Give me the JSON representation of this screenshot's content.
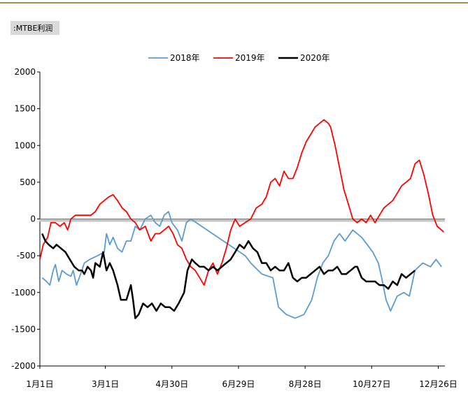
{
  "chart_data": {
    "type": "line",
    "title": ":MTBE利润",
    "xlim": [
      0,
      365
    ],
    "xticks": [
      {
        "value": 0,
        "label": "1月1日"
      },
      {
        "value": 59,
        "label": "3月1日"
      },
      {
        "value": 119,
        "label": "4月30日"
      },
      {
        "value": 179,
        "label": "6月29日"
      },
      {
        "value": 239,
        "label": "8月28日"
      },
      {
        "value": 299,
        "label": "10月27日"
      },
      {
        "value": 359,
        "label": "12月26日"
      }
    ],
    "ylim": [
      -2000,
      2000
    ],
    "yticks": [
      -2000,
      -1500,
      -1000,
      -500,
      0,
      500,
      1000,
      1500,
      2000
    ],
    "legend": "top",
    "series": [
      {
        "name": "2018年",
        "color": "#5b9bd5",
        "x": [
          2,
          6,
          9,
          12,
          14,
          17,
          20,
          24,
          28,
          30,
          33,
          36,
          40,
          45,
          52,
          58,
          60,
          63,
          66,
          70,
          74,
          78,
          82,
          86,
          90,
          95,
          100,
          104,
          108,
          112,
          116,
          119,
          124,
          128,
          132,
          136,
          185,
          190,
          200,
          210,
          215,
          222,
          230,
          238,
          245,
          250,
          255,
          260,
          265,
          270,
          275,
          282,
          290,
          295,
          300,
          305,
          308,
          312,
          316,
          322,
          328,
          333,
          338,
          345,
          352,
          357,
          362
        ],
        "values": [
          -800,
          -850,
          -900,
          -700,
          -620,
          -850,
          -700,
          -750,
          -780,
          -700,
          -900,
          -780,
          -600,
          -550,
          -500,
          -450,
          -200,
          -350,
          -250,
          -400,
          -450,
          -300,
          -300,
          -100,
          -150,
          0,
          50,
          -50,
          -100,
          50,
          100,
          -50,
          -150,
          -300,
          -50,
          0,
          -500,
          -600,
          -750,
          -800,
          -1200,
          -1300,
          -1350,
          -1300,
          -1100,
          -800,
          -600,
          -500,
          -300,
          -200,
          -300,
          -150,
          -250,
          -350,
          -450,
          -600,
          -800,
          -1100,
          -1250,
          -1050,
          -1000,
          -1050,
          -700,
          -600,
          -650,
          -550,
          -650
        ]
      },
      {
        "name": "2019年",
        "color": "#ff0000",
        "x": [
          0,
          3,
          7,
          10,
          14,
          18,
          22,
          25,
          28,
          32,
          40,
          46,
          50,
          54,
          58,
          62,
          66,
          70,
          74,
          78,
          82,
          86,
          90,
          95,
          100,
          104,
          108,
          112,
          116,
          120,
          124,
          128,
          132,
          136,
          140,
          144,
          148,
          152,
          156,
          160,
          164,
          168,
          172,
          176,
          180,
          185,
          190,
          195,
          200,
          204,
          208,
          212,
          216,
          220,
          224,
          228,
          232,
          236,
          240,
          244,
          248,
          252,
          256,
          260,
          262,
          266,
          270,
          274,
          278,
          282,
          286,
          290,
          294,
          298,
          302,
          306,
          310,
          314,
          318,
          322,
          326,
          330,
          334,
          338,
          342,
          346,
          350,
          354,
          358,
          362,
          364
        ],
        "values": [
          -550,
          -350,
          -250,
          -50,
          -50,
          -100,
          -50,
          -150,
          0,
          50,
          50,
          50,
          100,
          200,
          250,
          300,
          330,
          250,
          150,
          100,
          0,
          -50,
          -150,
          -100,
          -300,
          -200,
          -200,
          -150,
          -100,
          -200,
          -350,
          -400,
          -550,
          -650,
          -700,
          -800,
          -900,
          -700,
          -600,
          -750,
          -600,
          -400,
          -150,
          0,
          -100,
          -50,
          0,
          150,
          200,
          300,
          500,
          550,
          450,
          650,
          550,
          550,
          700,
          900,
          1050,
          1150,
          1250,
          1300,
          1350,
          1300,
          1250,
          1000,
          700,
          400,
          200,
          0,
          -50,
          0,
          -50,
          50,
          -50,
          50,
          150,
          200,
          250,
          350,
          450,
          500,
          550,
          750,
          800,
          600,
          350,
          50,
          -100,
          -150,
          -180
        ]
      },
      {
        "name": "2020年",
        "color": "#000000",
        "x": [
          2,
          5,
          8,
          12,
          15,
          19,
          23,
          27,
          31,
          35,
          38,
          40,
          43,
          46,
          48,
          50,
          54,
          57,
          60,
          63,
          66,
          70,
          73,
          78,
          82,
          84,
          86,
          89,
          93,
          97,
          101,
          105,
          109,
          113,
          117,
          121,
          125,
          130,
          133,
          137,
          140,
          144,
          148,
          152,
          156,
          160,
          164,
          168,
          172,
          176,
          180,
          184,
          188,
          192,
          196,
          200,
          204,
          208,
          212,
          216,
          220,
          224,
          228,
          232,
          236,
          240,
          244,
          248,
          252,
          256,
          260,
          264,
          268,
          272,
          276,
          280,
          284,
          286,
          290,
          294,
          298,
          302,
          306,
          310,
          314,
          318,
          322,
          326,
          330,
          334,
          338
        ],
        "values": [
          -200,
          -300,
          -350,
          -400,
          -350,
          -400,
          -450,
          -550,
          -650,
          -700,
          -700,
          -750,
          -650,
          -700,
          -800,
          -600,
          -650,
          -450,
          -700,
          -600,
          -700,
          -900,
          -1100,
          -1100,
          -900,
          -1100,
          -1350,
          -1300,
          -1150,
          -1200,
          -1150,
          -1250,
          -1150,
          -1200,
          -1200,
          -1250,
          -1150,
          -1000,
          -700,
          -550,
          -600,
          -650,
          -650,
          -700,
          -650,
          -700,
          -650,
          -600,
          -550,
          -450,
          -350,
          -400,
          -300,
          -400,
          -450,
          -600,
          -600,
          -700,
          -650,
          -700,
          -700,
          -600,
          -800,
          -850,
          -800,
          -800,
          -750,
          -700,
          -650,
          -750,
          -700,
          -700,
          -650,
          -750,
          -750,
          -700,
          -650,
          -650,
          -800,
          -850,
          -850,
          -850,
          -900,
          -900,
          -950,
          -850,
          -900,
          -750,
          -800,
          -750,
          -700
        ]
      }
    ]
  }
}
